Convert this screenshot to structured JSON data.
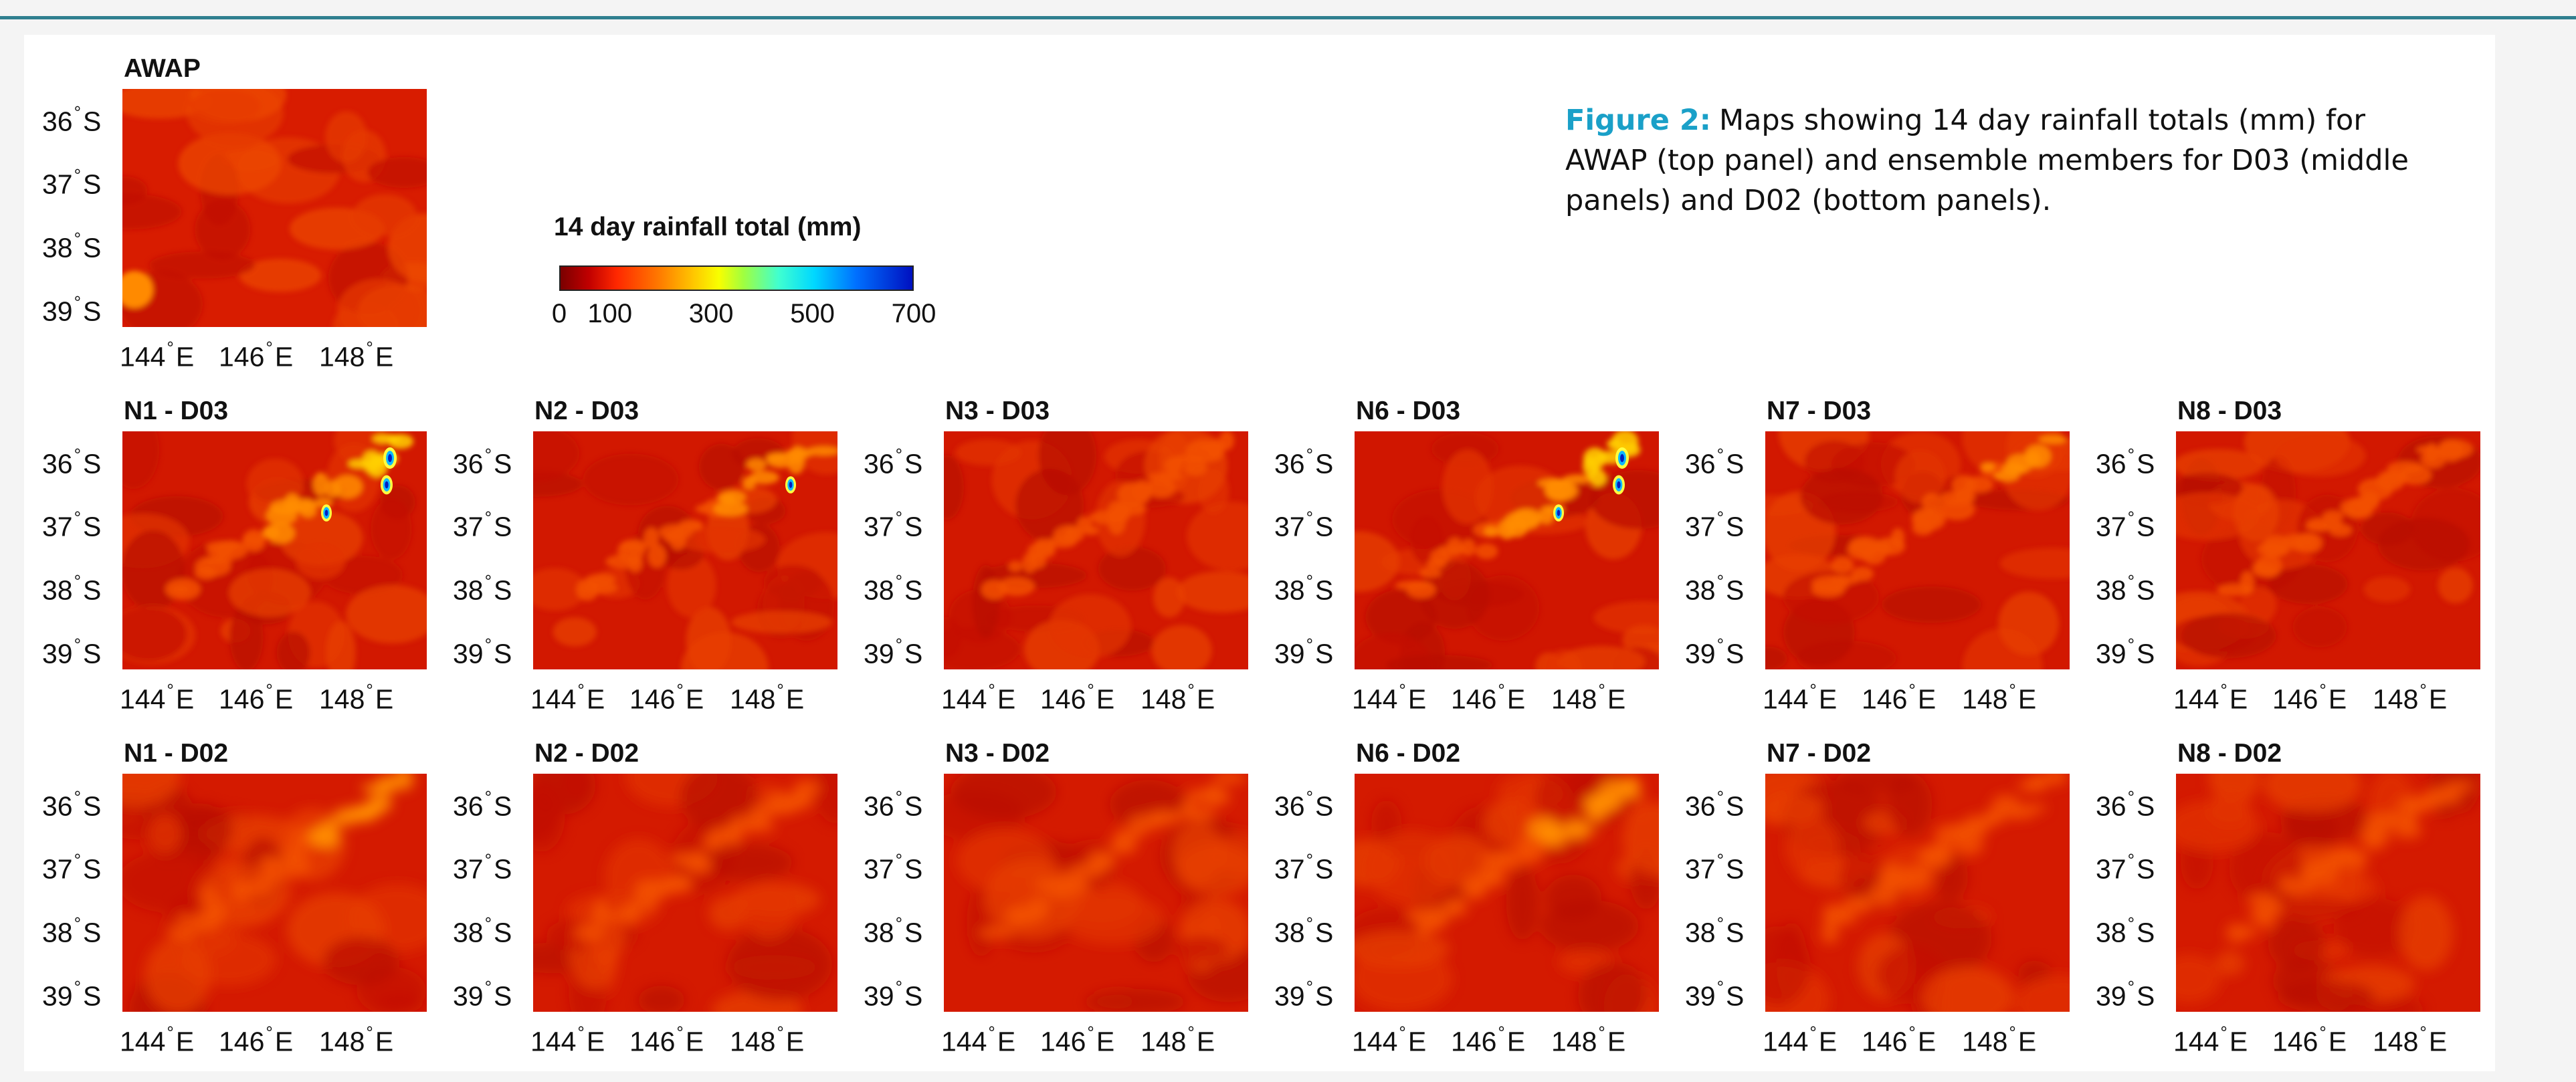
{
  "caption": {
    "figure_label": "Figure 2:",
    "text": "Maps showing 14 day rainfall totals (mm) for AWAP (top panel) and ensemble members for D03 (middle panels) and D02 (bottom panels)."
  },
  "colorbar": {
    "title": "14 day rainfall total (mm)",
    "ticks": [
      "0",
      "100",
      "300",
      "500",
      "700"
    ],
    "range_mm": [
      0,
      700
    ],
    "colormap": [
      "#7a0000",
      "#c00000",
      "#ff2800",
      "#ff7a00",
      "#ffc800",
      "#f8ff00",
      "#a0ff40",
      "#40ffd0",
      "#00d8ff",
      "#0070ff",
      "#0010c0"
    ]
  },
  "axes": {
    "lat_labels": [
      {
        "deg": "36",
        "suffix": "S"
      },
      {
        "deg": "37",
        "suffix": "S"
      },
      {
        "deg": "38",
        "suffix": "S"
      },
      {
        "deg": "39",
        "suffix": "S"
      }
    ],
    "lon_labels": [
      {
        "deg": "144",
        "suffix": "E"
      },
      {
        "deg": "146",
        "suffix": "E"
      },
      {
        "deg": "148",
        "suffix": "E"
      }
    ]
  },
  "panels": {
    "awap": {
      "title": "AWAP"
    },
    "d03": [
      {
        "title": "N1 - D03"
      },
      {
        "title": "N2 - D03"
      },
      {
        "title": "N3 - D03"
      },
      {
        "title": "N6 - D03"
      },
      {
        "title": "N7 - D03"
      },
      {
        "title": "N8 - D03"
      }
    ],
    "d02": [
      {
        "title": "N1 - D02"
      },
      {
        "title": "N2 - D02"
      },
      {
        "title": "N3 - D02"
      },
      {
        "title": "N6 - D02"
      },
      {
        "title": "N7 - D02"
      },
      {
        "title": "N8 - D02"
      }
    ]
  }
}
